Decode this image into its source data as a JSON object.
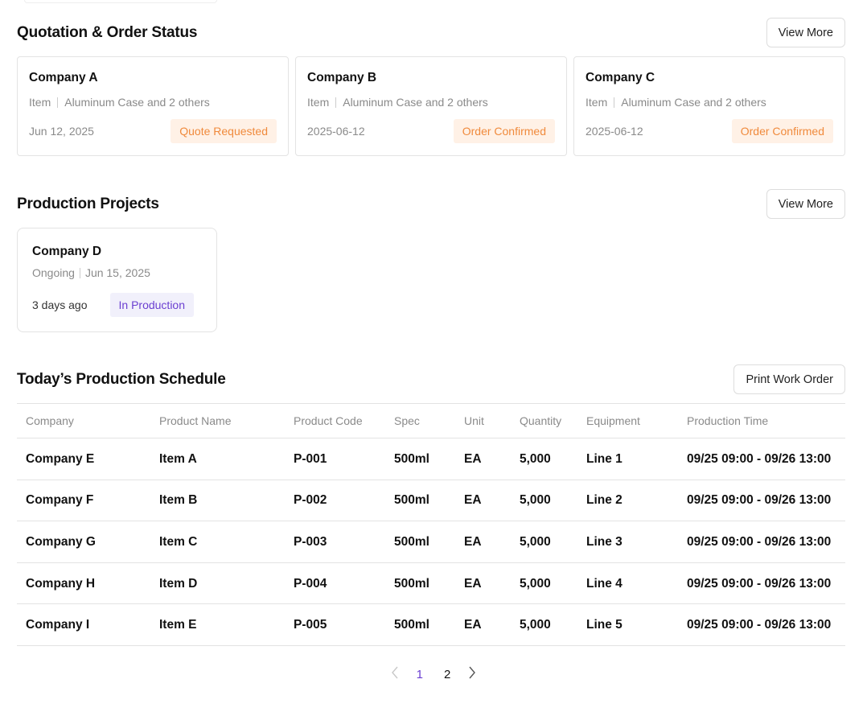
{
  "quotation": {
    "title": "Quotation & Order Status",
    "view_more": "View More",
    "cards": [
      {
        "company": "Company A",
        "item_label": "Item",
        "items": "Aluminum Case and 2 others",
        "date": "Jun 12, 2025",
        "status": "Quote Requested"
      },
      {
        "company": "Company B",
        "item_label": "Item",
        "items": "Aluminum Case and 2 others",
        "date": "2025-06-12",
        "status": "Order Confirmed"
      },
      {
        "company": "Company C",
        "item_label": "Item",
        "items": "Aluminum Case and 2 others",
        "date": "2025-06-12",
        "status": "Order Confirmed"
      }
    ]
  },
  "projects": {
    "title": "Production Projects",
    "view_more": "View More",
    "cards": [
      {
        "company": "Company D",
        "state": "Ongoing",
        "date": "Jun 15, 2025",
        "ago": "3 days ago",
        "status": "In Production"
      }
    ]
  },
  "schedule": {
    "title": "Today’s Production Schedule",
    "print_button": "Print Work Order",
    "columns": [
      "Company",
      "Product Name",
      "Product Code",
      "Spec",
      "Unit",
      "Quantity",
      "Equipment",
      "Production Time"
    ],
    "rows": [
      [
        "Company E",
        "Item A",
        "P-001",
        "500ml",
        "EA",
        "5,000",
        "Line 1",
        "09/25 09:00 - 09/26 13:00"
      ],
      [
        "Company F",
        "Item B",
        "P-002",
        "500ml",
        "EA",
        "5,000",
        "Line 2",
        "09/25 09:00 - 09/26 13:00"
      ],
      [
        "Company G",
        "Item C",
        "P-003",
        "500ml",
        "EA",
        "5,000",
        "Line 3",
        "09/25 09:00 - 09/26 13:00"
      ],
      [
        "Company H",
        "Item D",
        "P-004",
        "500ml",
        "EA",
        "5,000",
        "Line 4",
        "09/25 09:00 - 09/26 13:00"
      ],
      [
        "Company I",
        "Item E",
        "P-005",
        "500ml",
        "EA",
        "5,000",
        "Line 5",
        "09/25 09:00 - 09/26 13:00"
      ]
    ]
  },
  "pagination": {
    "prev_icon": "chevron-left-icon",
    "next_icon": "chevron-right-icon",
    "pages": [
      "1",
      "2"
    ],
    "current": "1"
  },
  "colors": {
    "accent_purple": "#6b3fd1",
    "badge_orange_text": "#f08a3c",
    "badge_orange_bg": "#fff1e6",
    "badge_purple_bg": "#f1f0fb"
  }
}
